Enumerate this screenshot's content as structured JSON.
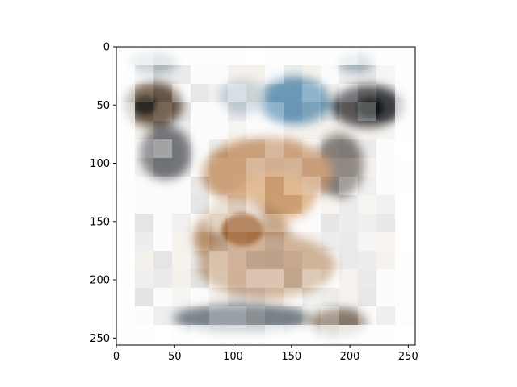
{
  "figure": {
    "image": {
      "description_icon": "mosaic-image-icon",
      "x_ticks": [
        "0",
        "50",
        "100",
        "150",
        "200",
        "250"
      ],
      "y_ticks": [
        "0",
        "50",
        "100",
        "150",
        "200",
        "250"
      ],
      "x_tick_values": [
        0,
        50,
        100,
        150,
        200,
        250
      ],
      "y_tick_values": [
        0,
        50,
        100,
        150,
        200,
        250
      ],
      "extent": [
        0,
        256
      ]
    }
  }
}
